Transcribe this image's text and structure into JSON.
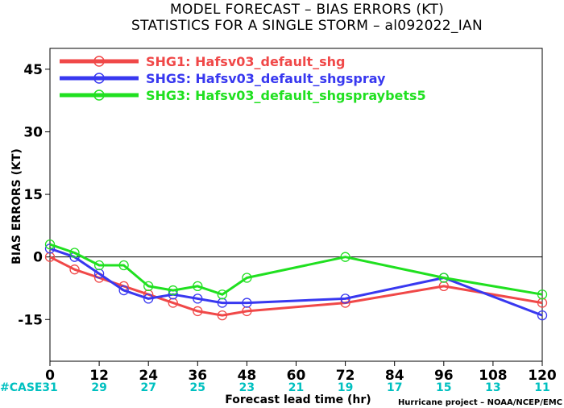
{
  "chart_data": {
    "type": "line",
    "title": "MODEL FORECAST – BIAS ERRORS (KT)",
    "subtitle": "STATISTICS FOR A SINGLE STORM – al092022_IAN",
    "xlabel": "Forecast lead time (hr)",
    "ylabel": "BIAS ERRORS (KT)",
    "xlim": [
      0,
      120
    ],
    "ylim": [
      -25,
      50
    ],
    "x_ticks": [
      0,
      12,
      24,
      36,
      48,
      60,
      72,
      84,
      96,
      108,
      120
    ],
    "y_ticks": [
      -15,
      0,
      15,
      30,
      45
    ],
    "zero_line": true,
    "legend_position": "top-left",
    "series": [
      {
        "name": "SHG1: Hafsv03_default_shg",
        "color": "#f04848",
        "x": [
          0,
          6,
          12,
          18,
          24,
          30,
          36,
          42,
          48,
          72,
          96,
          120
        ],
        "values": [
          0,
          -3,
          -5,
          -7,
          -9,
          -11,
          -13,
          -14,
          -13,
          -11,
          -7,
          -11
        ]
      },
      {
        "name": "SHGS: Hafsv03_default_shgspray",
        "color": "#3838f0",
        "x": [
          0,
          6,
          12,
          18,
          24,
          30,
          36,
          42,
          48,
          72,
          96,
          120
        ],
        "values": [
          2,
          0,
          -4,
          -8,
          -10,
          -9,
          -10,
          -11,
          -11,
          -10,
          -5,
          -14
        ]
      },
      {
        "name": "SHG3: Hafsv03_default_shgspraybets5",
        "color": "#20e020",
        "x": [
          0,
          6,
          12,
          18,
          24,
          30,
          36,
          42,
          48,
          72,
          96,
          120
        ],
        "values": [
          3,
          1,
          -2,
          -2,
          -7,
          -8,
          -7,
          -9,
          -5,
          0,
          -5,
          -9
        ]
      }
    ],
    "case_counts": {
      "label": "#CASE",
      "x": [
        0,
        12,
        24,
        36,
        48,
        60,
        72,
        84,
        96,
        108,
        120
      ],
      "values": [
        "31",
        "29",
        "27",
        "25",
        "23",
        "21",
        "19",
        "17",
        "15",
        "13",
        "11"
      ]
    },
    "credit": "Hurricane project – NOAA/NCEP/EMC"
  }
}
